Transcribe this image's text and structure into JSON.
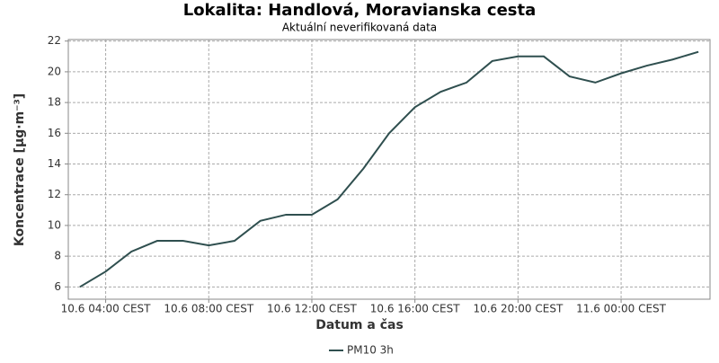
{
  "chart_data": {
    "type": "line",
    "title": "Lokalita: Handlová, Moravianska cesta",
    "subtitle": "Aktuální neverifikovaná data",
    "x_label": "Datum a čas",
    "y_label": "Koncentrace [µg·m⁻³]",
    "x": [
      3,
      4,
      5,
      6,
      7,
      8,
      9,
      10,
      11,
      12,
      13,
      14,
      15,
      16,
      17,
      18,
      19,
      20,
      21,
      22,
      23,
      24,
      25,
      26,
      27
    ],
    "series": [
      {
        "name": "PM10 3h",
        "color": "#2f4f4f",
        "values": [
          6,
          7,
          8.3,
          9,
          9,
          8.7,
          9,
          10.3,
          10.7,
          10.7,
          11.7,
          13.7,
          16,
          17.7,
          18.7,
          19.3,
          20.7,
          21,
          21,
          19.7,
          19.3,
          19.9,
          20.4,
          20.8,
          21.3
        ]
      }
    ],
    "xlim": [
      2.55,
      27.45
    ],
    "xticks": [
      {
        "value": 4,
        "label": "10.6 04:00 CEST"
      },
      {
        "value": 8,
        "label": "10.6 08:00 CEST"
      },
      {
        "value": 12,
        "label": "10.6 12:00 CEST"
      },
      {
        "value": 16,
        "label": "10.6 16:00 CEST"
      },
      {
        "value": 20,
        "label": "10.6 20:00 CEST"
      },
      {
        "value": 24,
        "label": "11.6 00:00 CEST"
      }
    ],
    "ylim": [
      5.2,
      22.1
    ],
    "yticks": [
      6,
      8,
      10,
      12,
      14,
      16,
      18,
      20,
      22
    ],
    "grid": true
  }
}
